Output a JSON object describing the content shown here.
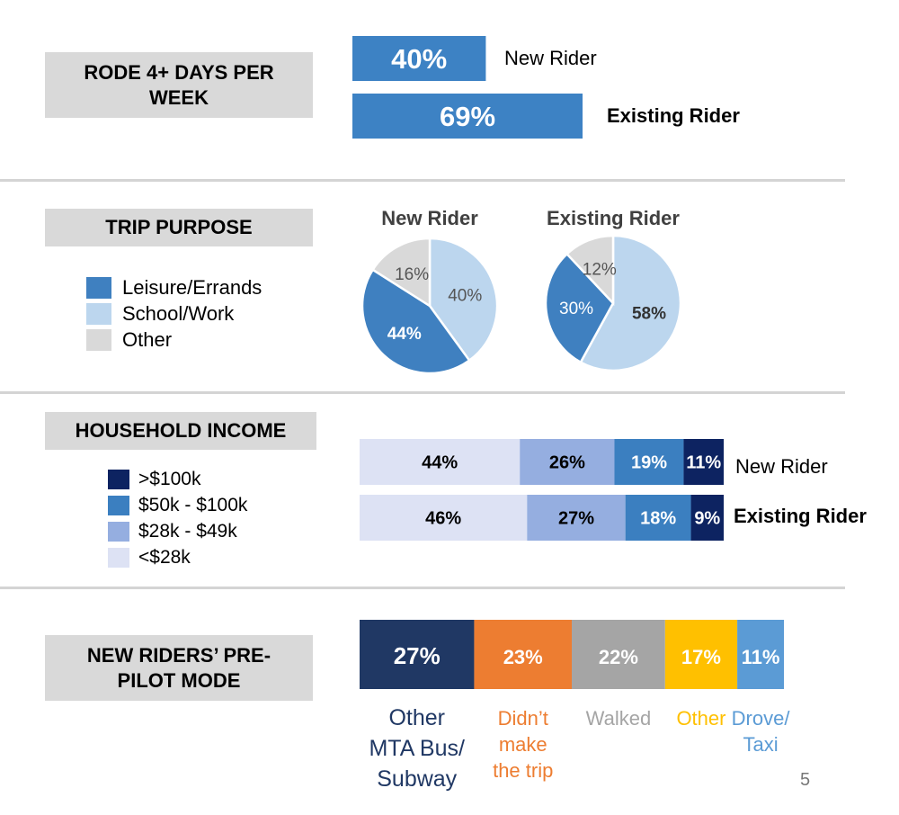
{
  "colors": {
    "bar_blue": "#3d82c4",
    "leisure": "#3f80c0",
    "school": "#bcd6ee",
    "other_pie": "#d9d9d9",
    "inc_high": "#0d2361",
    "inc_mid_high": "#3b7fc0",
    "inc_mid_low": "#95aee0",
    "inc_low": "#dde2f4",
    "mode_mta": "#203864",
    "mode_didnt": "#ed7d31",
    "mode_walked": "#a5a5a5",
    "mode_other": "#ffc000",
    "mode_drove": "#5b9bd5"
  },
  "sections": {
    "frequency": {
      "title": "RODE 4+ DAYS PER\nWEEK"
    },
    "purpose": {
      "title": "TRIP PURPOSE",
      "legend": [
        {
          "label": "Leisure/Errands",
          "color": "#3f80c0"
        },
        {
          "label": "School/Work",
          "color": "#bcd6ee"
        },
        {
          "label": "Other",
          "color": "#d9d9d9"
        }
      ]
    },
    "income": {
      "title": "HOUSEHOLD INCOME",
      "legend": [
        {
          "label": ">$100k",
          "color": "#0d2361"
        },
        {
          "label": "$50k - $100k",
          "color": "#3b7fc0"
        },
        {
          "label": "$28k - $49k",
          "color": "#95aee0"
        },
        {
          "label": "<$28k",
          "color": "#dde2f4"
        }
      ]
    },
    "mode": {
      "title": "NEW RIDERS’ PRE-\nPILOT MODE"
    }
  },
  "page_number": "5",
  "chart_data": [
    {
      "type": "bar",
      "orientation": "horizontal",
      "categories": [
        "New Rider",
        "Existing Rider"
      ],
      "values": [
        40,
        69
      ],
      "value_labels": [
        "40%",
        "69%"
      ],
      "xlim": [
        0,
        69
      ]
    },
    {
      "type": "pie",
      "title": "New Rider",
      "labels": [
        "Leisure/Errands",
        "School/Work",
        "Other"
      ],
      "values": [
        44,
        40,
        16
      ],
      "value_labels": [
        "44%",
        "40%",
        "16%"
      ]
    },
    {
      "type": "pie",
      "title": "Existing Rider",
      "labels": [
        "Leisure/Errands",
        "School/Work",
        "Other"
      ],
      "values": [
        30,
        58,
        12
      ],
      "value_labels": [
        "30%",
        "58%",
        "12%"
      ]
    },
    {
      "type": "bar",
      "orientation": "horizontal",
      "stacked": true,
      "categories": [
        "New Rider",
        "Existing Rider"
      ],
      "series": [
        {
          "name": "<$28k",
          "values": [
            44,
            46
          ],
          "value_labels": [
            "44%",
            "46%"
          ]
        },
        {
          "name": "$28k - $49k",
          "values": [
            26,
            27
          ],
          "value_labels": [
            "26%",
            "27%"
          ]
        },
        {
          "name": "$50k - $100k",
          "values": [
            19,
            18
          ],
          "value_labels": [
            "19%",
            "18%"
          ]
        },
        {
          "name": ">$100k",
          "values": [
            11,
            9
          ],
          "value_labels": [
            "11%",
            "9%"
          ]
        }
      ]
    },
    {
      "type": "bar",
      "orientation": "horizontal",
      "stacked": true,
      "categories": [
        "Other\nMTA Bus/\nSubway",
        "Didn’t\nmake\nthe trip",
        "Walked",
        "Other",
        "Drove/\nTaxi"
      ],
      "values": [
        27,
        23,
        22,
        17,
        11
      ],
      "value_labels": [
        "27%",
        "23%",
        "22%",
        "17%",
        "11%"
      ]
    }
  ]
}
